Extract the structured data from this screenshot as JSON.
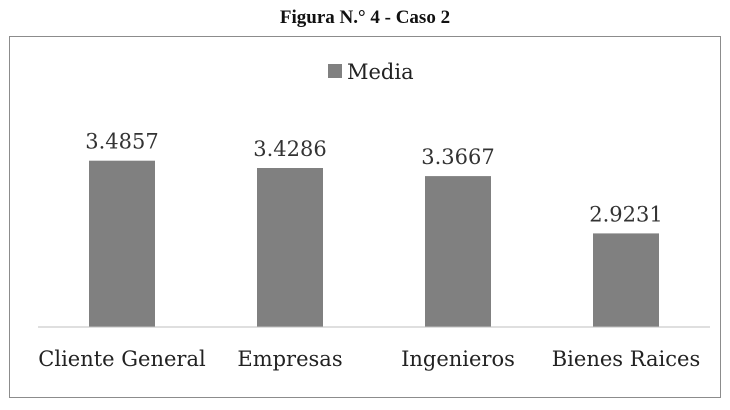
{
  "figure": {
    "title": "Figura N.° 4 - Caso 2"
  },
  "chart_data": {
    "type": "bar",
    "categories": [
      "Cliente General",
      "Empresas",
      "Ingenieros",
      "Bienes Raices"
    ],
    "series": [
      {
        "name": "Media",
        "values": [
          3.4857,
          3.4286,
          3.3667,
          2.9231
        ],
        "labels": [
          "3.4857",
          "3.4286",
          "3.3667",
          "2.9231"
        ],
        "color": "#808080"
      }
    ],
    "title": "",
    "xlabel": "",
    "ylabel": "",
    "ylim": [
      2.2,
      3.8
    ],
    "grid": false,
    "legend": "top-center",
    "axis_color": "#bfbfbf"
  }
}
